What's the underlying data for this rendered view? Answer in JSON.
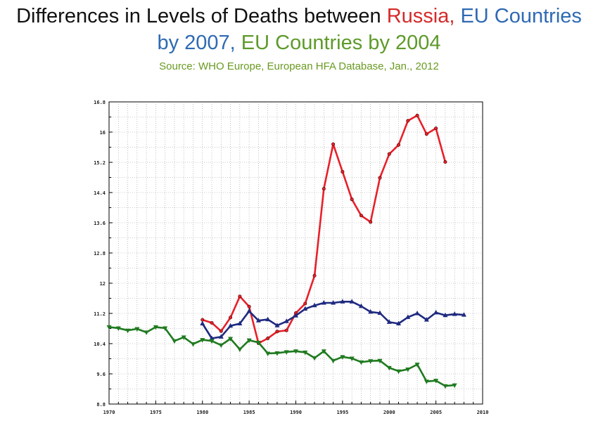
{
  "title": {
    "part1": "Differences in Levels of Deaths between ",
    "russia": "Russia,",
    "space1": " ",
    "eu2007a": "EU Countries",
    "eu2007b": "by 2007,",
    "space2": " ",
    "eu2004": "EU Countries by 2004",
    "source": "Source:  WHO Europe, European HFA Database, Jan., 2012"
  },
  "colors": {
    "russia": "#e8202a",
    "eu2007": "#1f2a80",
    "eu2004": "#1f7a1f",
    "title_russia": "#d42a2a",
    "title_eu2007": "#2f6ab3",
    "title_eu2004": "#5e9a2a",
    "grid": "#9a9a9a"
  },
  "chart_data": {
    "type": "line",
    "xlim": [
      1970,
      2010
    ],
    "ylim": [
      8.8,
      16.8
    ],
    "xticks": [
      "1970",
      "1975",
      "1980",
      "1985",
      "1990",
      "1995",
      "2000",
      "2005",
      "2010"
    ],
    "yticks": [
      "8.8",
      "9.6",
      "10.4",
      "11.2",
      "12",
      "12.8",
      "13.6",
      "14.4",
      "15.2",
      "16",
      "16.8"
    ],
    "grid": true,
    "series": [
      {
        "key": "russia",
        "marker": "circle",
        "x": [
          1980,
          1981,
          1982,
          1983,
          1984,
          1985,
          1986,
          1987,
          1988,
          1989,
          1990,
          1991,
          1992,
          1993,
          1994,
          1995,
          1996,
          1997,
          1998,
          1999,
          2000,
          2001,
          2002,
          2003,
          2004,
          2005,
          2006
        ],
        "y": [
          11.03,
          10.95,
          10.73,
          11.09,
          11.65,
          11.38,
          10.41,
          10.54,
          10.72,
          10.75,
          11.21,
          11.46,
          12.2,
          14.5,
          15.68,
          14.95,
          14.22,
          13.79,
          13.62,
          14.79,
          15.42,
          15.66,
          16.3,
          16.44,
          15.95,
          16.1,
          15.21
        ]
      },
      {
        "key": "eu2007",
        "marker": "triangle-up",
        "x": [
          1980,
          1981,
          1982,
          1983,
          1984,
          1985,
          1986,
          1987,
          1988,
          1989,
          1990,
          1991,
          1992,
          1993,
          1994,
          1995,
          1996,
          1997,
          1998,
          1999,
          2000,
          2001,
          2002,
          2003,
          2004,
          2005,
          2006,
          2007,
          2008
        ],
        "y": [
          10.93,
          10.54,
          10.58,
          10.87,
          10.93,
          11.26,
          11.01,
          11.04,
          10.88,
          10.99,
          11.14,
          11.32,
          11.41,
          11.48,
          11.48,
          11.51,
          11.51,
          11.39,
          11.24,
          11.21,
          10.97,
          10.93,
          11.1,
          11.2,
          11.03,
          11.22,
          11.15,
          11.18,
          11.16
        ]
      },
      {
        "key": "eu2004",
        "marker": "triangle-down",
        "x": [
          1970,
          1971,
          1972,
          1973,
          1974,
          1975,
          1976,
          1977,
          1978,
          1979,
          1980,
          1981,
          1982,
          1983,
          1984,
          1985,
          1986,
          1987,
          1988,
          1989,
          1990,
          1991,
          1992,
          1993,
          1994,
          1995,
          1996,
          1997,
          1998,
          1999,
          2000,
          2001,
          2002,
          2003,
          2004,
          2005,
          2006,
          2007
        ],
        "y": [
          10.84,
          10.81,
          10.75,
          10.79,
          10.7,
          10.84,
          10.81,
          10.47,
          10.57,
          10.39,
          10.5,
          10.47,
          10.36,
          10.53,
          10.25,
          10.49,
          10.43,
          10.14,
          10.15,
          10.18,
          10.2,
          10.17,
          10.02,
          10.2,
          9.95,
          10.05,
          10.01,
          9.91,
          9.94,
          9.95,
          9.76,
          9.67,
          9.72,
          9.85,
          9.4,
          9.42,
          9.28,
          9.3
        ]
      }
    ]
  }
}
